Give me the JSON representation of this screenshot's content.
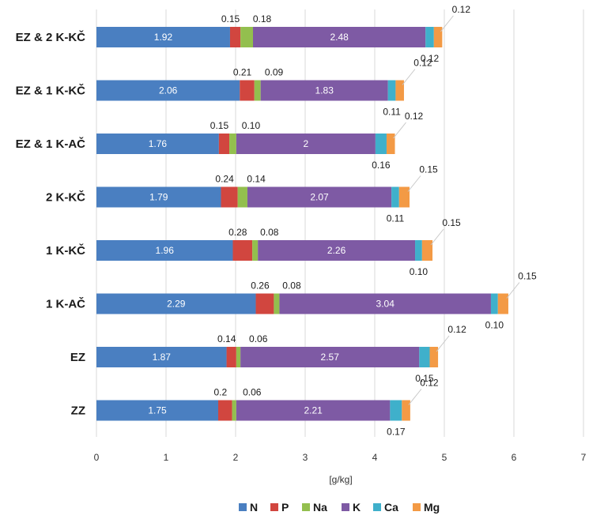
{
  "chart_data": {
    "type": "bar",
    "orientation": "horizontal",
    "stacked": true,
    "categories": [
      "EZ & 2 K-KČ",
      "EZ & 1 K-KČ",
      "EZ & 1 K-AČ",
      "2 K-KČ",
      "1 K-KČ",
      "1 K-AČ",
      "EZ",
      "ZZ"
    ],
    "series": [
      {
        "name": "N",
        "color": "#4a7fc1",
        "values": [
          1.92,
          2.06,
          1.76,
          1.79,
          1.96,
          2.29,
          1.87,
          1.75
        ]
      },
      {
        "name": "P",
        "color": "#d1463f",
        "values": [
          0.15,
          0.21,
          0.15,
          0.24,
          0.28,
          0.26,
          0.14,
          0.2
        ]
      },
      {
        "name": "Na",
        "color": "#93bf4e",
        "values": [
          0.18,
          0.09,
          0.1,
          0.14,
          0.08,
          0.08,
          0.06,
          0.06
        ]
      },
      {
        "name": "K",
        "color": "#7e5aa4",
        "values": [
          2.48,
          1.83,
          2,
          2.07,
          2.26,
          3.04,
          2.57,
          2.21
        ]
      },
      {
        "name": "Ca",
        "color": "#3fb0cb",
        "values": [
          0.12,
          0.11,
          0.16,
          0.11,
          0.1,
          0.1,
          0.15,
          0.17
        ]
      },
      {
        "name": "Mg",
        "color": "#f39a45",
        "values": [
          0.12,
          0.12,
          0.12,
          0.15,
          0.15,
          0.15,
          0.12,
          0.12
        ]
      }
    ],
    "labels": {
      "N": [
        "1.92",
        "2.06",
        "1.76",
        "1.79",
        "1.96",
        "2.29",
        "1.87",
        "1.75"
      ],
      "P": [
        "0.15",
        "0.21",
        "0.15",
        "0.24",
        "0.28",
        "0.26",
        "0.14",
        "0.2"
      ],
      "Na": [
        "0.18",
        "0.09",
        "0.10",
        "0.14",
        "0.08",
        "0.08",
        "0.06",
        "0.06"
      ],
      "K": [
        "2.48",
        "1.83",
        "2",
        "2.07",
        "2.26",
        "3.04",
        "2.57",
        "2.21"
      ],
      "Ca": [
        "0.12",
        "0.11",
        "0.16",
        "0.11",
        "0.10",
        "0.10",
        "0.15",
        "0.17"
      ],
      "Mg": [
        "0.12",
        "0.12",
        "0.12",
        "0.15",
        "0.15",
        "0.15",
        "0.12",
        "0.12"
      ]
    },
    "xlim": [
      0,
      7
    ],
    "xticks": [
      0,
      1,
      2,
      3,
      4,
      5,
      6,
      7
    ],
    "xlabel": "[g/kg]",
    "grid": "vertical",
    "legend": "bottom"
  }
}
